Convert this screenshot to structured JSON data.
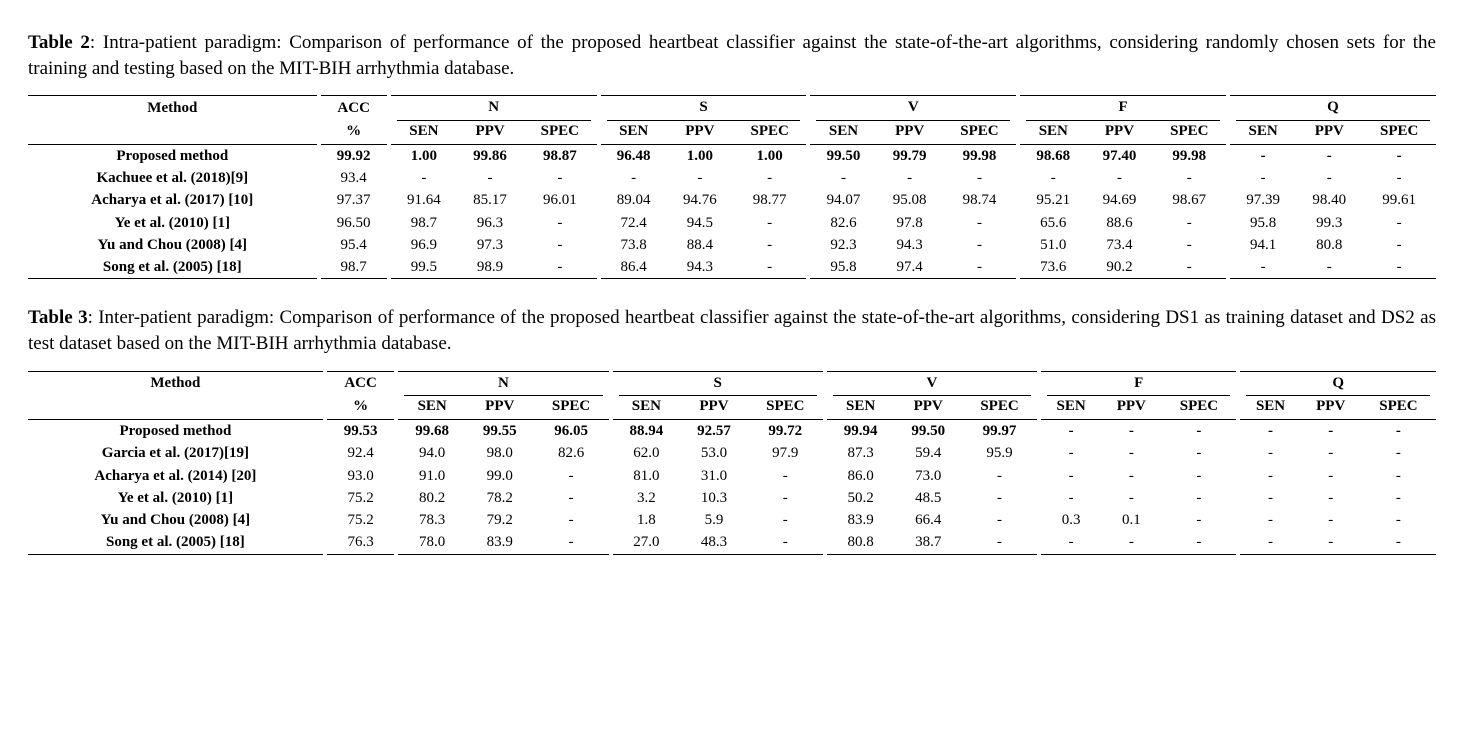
{
  "tables": [
    {
      "label": "Table 2",
      "caption_rest": ": Intra-patient paradigm: Comparison of performance of the proposed heartbeat classifier against the state-of-the-art algorithms, considering randomly chosen sets for the training and testing based on the MIT-BIH arrhythmia database.",
      "header": {
        "method": "Method",
        "acc": "ACC",
        "acc_unit": "%",
        "groups": [
          "N",
          "S",
          "V",
          "F",
          "Q"
        ],
        "sub": [
          "SEN",
          "PPV",
          "SPEC"
        ]
      },
      "rows": [
        {
          "method": "Proposed method",
          "bold": true,
          "acc": "99.92",
          "c": [
            "1.00",
            "99.86",
            "98.87",
            "96.48",
            "1.00",
            "1.00",
            "99.50",
            "99.79",
            "99.98",
            "98.68",
            "97.40",
            "99.98",
            "-",
            "-",
            "-"
          ]
        },
        {
          "method": "Kachuee et al. (2018)[9]",
          "bold": false,
          "acc": "93.4",
          "c": [
            "-",
            "-",
            "-",
            "-",
            "-",
            "-",
            "-",
            "-",
            "-",
            "-",
            "-",
            "-",
            "-",
            "-",
            "-"
          ]
        },
        {
          "method": "Acharya et al. (2017) [10]",
          "bold": false,
          "acc": "97.37",
          "c": [
            "91.64",
            "85.17",
            "96.01",
            "89.04",
            "94.76",
            "98.77",
            "94.07",
            "95.08",
            "98.74",
            "95.21",
            "94.69",
            "98.67",
            "97.39",
            "98.40",
            "99.61"
          ]
        },
        {
          "method": "Ye et al. (2010) [1]",
          "bold": false,
          "acc": "96.50",
          "c": [
            "98.7",
            "96.3",
            "-",
            "72.4",
            "94.5",
            "-",
            "82.6",
            "97.8",
            "-",
            "65.6",
            "88.6",
            "-",
            "95.8",
            "99.3",
            "-"
          ]
        },
        {
          "method": "Yu and Chou (2008) [4]",
          "bold": false,
          "acc": "95.4",
          "c": [
            "96.9",
            "97.3",
            "-",
            "73.8",
            "88.4",
            "-",
            "92.3",
            "94.3",
            "-",
            "51.0",
            "73.4",
            "-",
            "94.1",
            "80.8",
            "-"
          ]
        },
        {
          "method": "Song et al. (2005) [18]",
          "bold": false,
          "acc": "98.7",
          "c": [
            "99.5",
            "98.9",
            "-",
            "86.4",
            "94.3",
            "-",
            "95.8",
            "97.4",
            "-",
            "73.6",
            "90.2",
            "-",
            "-",
            "-",
            "-"
          ]
        }
      ]
    },
    {
      "label": "Table 3",
      "caption_rest": ": Inter-patient paradigm: Comparison of performance of the proposed heartbeat classifier against the state-of-the-art algorithms, considering DS1 as training dataset and DS2 as test dataset based on the MIT-BIH arrhythmia database.",
      "header": {
        "method": "Method",
        "acc": "ACC",
        "acc_unit": "%",
        "groups": [
          "N",
          "S",
          "V",
          "F",
          "Q"
        ],
        "sub": [
          "SEN",
          "PPV",
          "SPEC"
        ]
      },
      "rows": [
        {
          "method": "Proposed method",
          "bold": true,
          "acc": "99.53",
          "c": [
            "99.68",
            "99.55",
            "96.05",
            "88.94",
            "92.57",
            "99.72",
            "99.94",
            "99.50",
            "99.97",
            "-",
            "-",
            "-",
            "-",
            "-",
            "-"
          ]
        },
        {
          "method": "Garcia et al. (2017)[19]",
          "bold": false,
          "acc": "92.4",
          "c": [
            "94.0",
            "98.0",
            "82.6",
            "62.0",
            "53.0",
            "97.9",
            "87.3",
            "59.4",
            "95.9",
            "-",
            "-",
            "-",
            "-",
            "-",
            "-"
          ]
        },
        {
          "method": "Acharya et al. (2014) [20]",
          "bold": false,
          "acc": "93.0",
          "c": [
            "91.0",
            "99.0",
            "-",
            "81.0",
            "31.0",
            "-",
            "86.0",
            "73.0",
            "-",
            "-",
            "-",
            "-",
            "-",
            "-",
            "-"
          ]
        },
        {
          "method": "Ye et al. (2010) [1]",
          "bold": false,
          "acc": "75.2",
          "c": [
            "80.2",
            "78.2",
            "-",
            "3.2",
            "10.3",
            "-",
            "50.2",
            "48.5",
            "-",
            "-",
            "-",
            "-",
            "-",
            "-",
            "-"
          ]
        },
        {
          "method": "Yu and Chou (2008) [4]",
          "bold": false,
          "acc": "75.2",
          "c": [
            "78.3",
            "79.2",
            "-",
            "1.8",
            "5.9",
            "-",
            "83.9",
            "66.4",
            "-",
            "0.3",
            "0.1",
            "-",
            "-",
            "-",
            "-"
          ]
        },
        {
          "method": "Song et al. (2005) [18]",
          "bold": false,
          "acc": "76.3",
          "c": [
            "78.0",
            "83.9",
            "-",
            "27.0",
            "48.3",
            "-",
            "80.8",
            "38.7",
            "-",
            "-",
            "-",
            "-",
            "-",
            "-",
            "-"
          ]
        }
      ]
    }
  ]
}
